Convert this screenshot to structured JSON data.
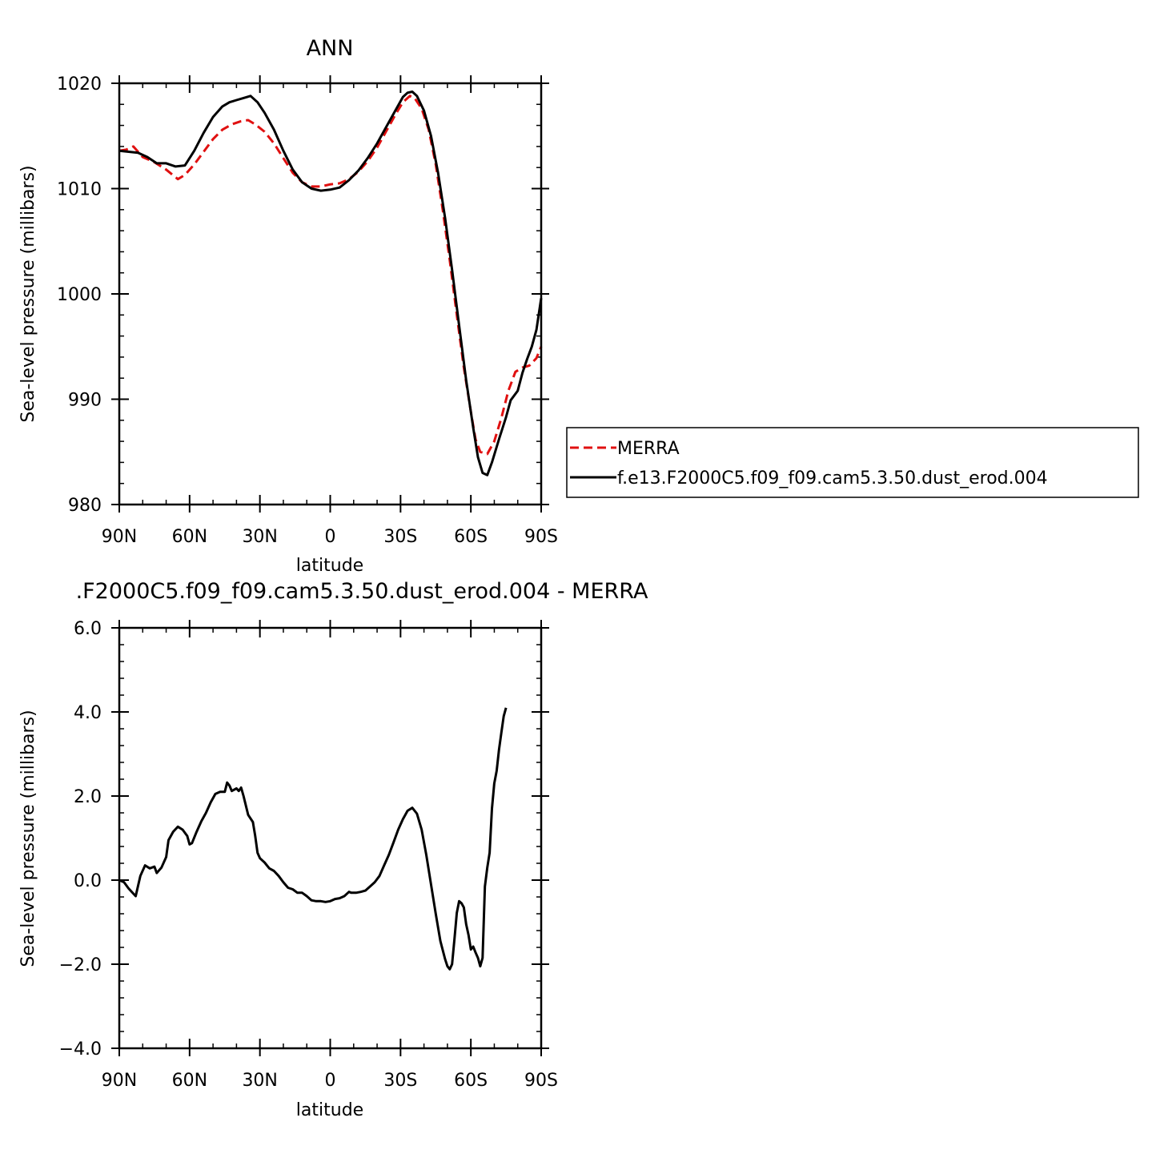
{
  "chart_data": [
    {
      "type": "line",
      "title": "ANN",
      "xlabel": "latitude",
      "ylabel": "Sea-level pressure (millibars)",
      "xlim": [
        90,
        -90
      ],
      "ylim": [
        980,
        1020
      ],
      "x_ticks": [
        {
          "v": 90,
          "label": "90N"
        },
        {
          "v": 60,
          "label": "60N"
        },
        {
          "v": 30,
          "label": "30N"
        },
        {
          "v": 0,
          "label": "0"
        },
        {
          "v": -30,
          "label": "30S"
        },
        {
          "v": -60,
          "label": "60S"
        },
        {
          "v": -90,
          "label": "90S"
        }
      ],
      "y_ticks": [
        {
          "v": 980,
          "label": "980"
        },
        {
          "v": 990,
          "label": "990"
        },
        {
          "v": 1000,
          "label": "1000"
        },
        {
          "v": 1010,
          "label": "1010"
        },
        {
          "v": 1020,
          "label": "1020"
        }
      ],
      "legend_position": "right",
      "series": [
        {
          "name": "MERRA",
          "color": "#e01010",
          "dash": "dashed",
          "points": [
            [
              90,
              1013.6
            ],
            [
              87,
              1013.7
            ],
            [
              84,
              1014.0
            ],
            [
              80,
              1013.0
            ],
            [
              75,
              1012.5
            ],
            [
              70,
              1011.8
            ],
            [
              65,
              1010.9
            ],
            [
              62,
              1011.3
            ],
            [
              58,
              1012.3
            ],
            [
              54,
              1013.5
            ],
            [
              50,
              1014.7
            ],
            [
              46,
              1015.6
            ],
            [
              42,
              1016.1
            ],
            [
              38,
              1016.4
            ],
            [
              35,
              1016.5
            ],
            [
              32,
              1016.1
            ],
            [
              28,
              1015.4
            ],
            [
              24,
              1014.3
            ],
            [
              20,
              1012.9
            ],
            [
              16,
              1011.5
            ],
            [
              12,
              1010.6
            ],
            [
              8,
              1010.2
            ],
            [
              4,
              1010.2
            ],
            [
              0,
              1010.4
            ],
            [
              -4,
              1010.5
            ],
            [
              -8,
              1010.9
            ],
            [
              -12,
              1011.6
            ],
            [
              -16,
              1012.6
            ],
            [
              -20,
              1013.9
            ],
            [
              -24,
              1015.5
            ],
            [
              -28,
              1017.1
            ],
            [
              -31,
              1018.2
            ],
            [
              -34,
              1018.8
            ],
            [
              -36,
              1018.6
            ],
            [
              -39,
              1017.6
            ],
            [
              -42,
              1015.6
            ],
            [
              -45,
              1012.3
            ],
            [
              -48,
              1008.0
            ],
            [
              -51,
              1003.2
            ],
            [
              -54,
              998.0
            ],
            [
              -57,
              993.0
            ],
            [
              -60,
              988.8
            ],
            [
              -62,
              986.2
            ],
            [
              -64,
              985.0
            ],
            [
              -67,
              984.8
            ],
            [
              -70,
              986.0
            ],
            [
              -73,
              988.2
            ],
            [
              -76,
              990.8
            ],
            [
              -79,
              992.6
            ],
            [
              -82,
              993.0
            ],
            [
              -85,
              993.2
            ],
            [
              -88,
              993.9
            ],
            [
              -90,
              995.0
            ]
          ]
        },
        {
          "name": "f.e13.F2000C5.f09_f09.cam5.3.50.dust_erod.004",
          "color": "#000000",
          "dash": "solid",
          "points": [
            [
              90,
              1013.6
            ],
            [
              86,
              1013.5
            ],
            [
              82,
              1013.4
            ],
            [
              78,
              1013.0
            ],
            [
              74,
              1012.4
            ],
            [
              70,
              1012.4
            ],
            [
              66,
              1012.1
            ],
            [
              62,
              1012.2
            ],
            [
              58,
              1013.6
            ],
            [
              54,
              1015.3
            ],
            [
              50,
              1016.8
            ],
            [
              46,
              1017.8
            ],
            [
              43,
              1018.2
            ],
            [
              40,
              1018.4
            ],
            [
              37,
              1018.6
            ],
            [
              34,
              1018.8
            ],
            [
              31,
              1018.2
            ],
            [
              28,
              1017.2
            ],
            [
              24,
              1015.6
            ],
            [
              20,
              1013.6
            ],
            [
              16,
              1011.8
            ],
            [
              12,
              1010.6
            ],
            [
              8,
              1010.0
            ],
            [
              4,
              1009.8
            ],
            [
              0,
              1009.9
            ],
            [
              -4,
              1010.1
            ],
            [
              -8,
              1010.8
            ],
            [
              -12,
              1011.7
            ],
            [
              -16,
              1012.9
            ],
            [
              -20,
              1014.3
            ],
            [
              -24,
              1015.9
            ],
            [
              -28,
              1017.5
            ],
            [
              -31,
              1018.7
            ],
            [
              -33,
              1019.1
            ],
            [
              -35,
              1019.2
            ],
            [
              -37,
              1018.8
            ],
            [
              -40,
              1017.4
            ],
            [
              -43,
              1015.0
            ],
            [
              -46,
              1011.5
            ],
            [
              -49,
              1007.2
            ],
            [
              -52,
              1002.3
            ],
            [
              -55,
              997.0
            ],
            [
              -58,
              991.8
            ],
            [
              -61,
              987.3
            ],
            [
              -63,
              984.5
            ],
            [
              -65,
              983.0
            ],
            [
              -67,
              982.8
            ],
            [
              -69,
              984.0
            ],
            [
              -72,
              986.2
            ],
            [
              -75,
              988.3
            ],
            [
              -77,
              989.9
            ],
            [
              -80,
              990.8
            ],
            [
              -82,
              992.5
            ],
            [
              -84,
              993.8
            ],
            [
              -86,
              995.0
            ],
            [
              -88,
              996.6
            ],
            [
              -90,
              999.6
            ]
          ]
        }
      ]
    },
    {
      "type": "line",
      "title": ".F2000C5.f09_f09.cam5.3.50.dust_erod.004 - MERRA",
      "xlabel": "latitude",
      "ylabel": "Sea-level pressure (millibars)",
      "xlim": [
        90,
        -90
      ],
      "ylim": [
        -4.0,
        6.0
      ],
      "x_ticks": [
        {
          "v": 90,
          "label": "90N"
        },
        {
          "v": 60,
          "label": "60N"
        },
        {
          "v": 30,
          "label": "30N"
        },
        {
          "v": 0,
          "label": "0"
        },
        {
          "v": -30,
          "label": "30S"
        },
        {
          "v": -60,
          "label": "60S"
        },
        {
          "v": -90,
          "label": "90S"
        }
      ],
      "y_ticks": [
        {
          "v": -4.0,
          "label": "−4.0"
        },
        {
          "v": -2.0,
          "label": "−2.0"
        },
        {
          "v": 0.0,
          "label": "0.0"
        },
        {
          "v": 2.0,
          "label": "2.0"
        },
        {
          "v": 4.0,
          "label": "4.0"
        },
        {
          "v": 6.0,
          "label": "6.0"
        }
      ],
      "series": [
        {
          "color": "#000000",
          "dash": "solid",
          "points": [
            [
              90,
              0.0
            ],
            [
              88,
              -0.05
            ],
            [
              86,
              -0.2
            ],
            [
              83,
              -0.38
            ],
            [
              81,
              0.1
            ],
            [
              79,
              0.35
            ],
            [
              77,
              0.28
            ],
            [
              75,
              0.32
            ],
            [
              74,
              0.17
            ],
            [
              72,
              0.3
            ],
            [
              70,
              0.55
            ],
            [
              69,
              0.95
            ],
            [
              67,
              1.15
            ],
            [
              65,
              1.27
            ],
            [
              63,
              1.2
            ],
            [
              61,
              1.05
            ],
            [
              60,
              0.85
            ],
            [
              59,
              0.88
            ],
            [
              57,
              1.15
            ],
            [
              55,
              1.4
            ],
            [
              53,
              1.6
            ],
            [
              51,
              1.85
            ],
            [
              49,
              2.05
            ],
            [
              47,
              2.1
            ],
            [
              45,
              2.1
            ],
            [
              44,
              2.32
            ],
            [
              43,
              2.25
            ],
            [
              42,
              2.12
            ],
            [
              40,
              2.18
            ],
            [
              39,
              2.12
            ],
            [
              38,
              2.2
            ],
            [
              37,
              2.0
            ],
            [
              35,
              1.55
            ],
            [
              33,
              1.38
            ],
            [
              32,
              1.05
            ],
            [
              31,
              0.65
            ],
            [
              30,
              0.52
            ],
            [
              28,
              0.42
            ],
            [
              26,
              0.28
            ],
            [
              24,
              0.22
            ],
            [
              22,
              0.1
            ],
            [
              20,
              -0.05
            ],
            [
              18,
              -0.18
            ],
            [
              16,
              -0.22
            ],
            [
              14,
              -0.3
            ],
            [
              12,
              -0.3
            ],
            [
              10,
              -0.38
            ],
            [
              8,
              -0.48
            ],
            [
              6,
              -0.5
            ],
            [
              4,
              -0.5
            ],
            [
              2,
              -0.52
            ],
            [
              0,
              -0.5
            ],
            [
              -2,
              -0.45
            ],
            [
              -4,
              -0.43
            ],
            [
              -6,
              -0.38
            ],
            [
              -8,
              -0.28
            ],
            [
              -9,
              -0.3
            ],
            [
              -11,
              -0.3
            ],
            [
              -13,
              -0.28
            ],
            [
              -15,
              -0.25
            ],
            [
              -17,
              -0.15
            ],
            [
              -19,
              -0.05
            ],
            [
              -21,
              0.1
            ],
            [
              -23,
              0.35
            ],
            [
              -25,
              0.6
            ],
            [
              -27,
              0.9
            ],
            [
              -29,
              1.2
            ],
            [
              -31,
              1.45
            ],
            [
              -33,
              1.65
            ],
            [
              -35,
              1.72
            ],
            [
              -37,
              1.58
            ],
            [
              -39,
              1.2
            ],
            [
              -41,
              0.6
            ],
            [
              -43,
              -0.1
            ],
            [
              -45,
              -0.8
            ],
            [
              -47,
              -1.45
            ],
            [
              -49,
              -1.88
            ],
            [
              -50,
              -2.05
            ],
            [
              -51,
              -2.12
            ],
            [
              -52,
              -2.0
            ],
            [
              -53,
              -1.4
            ],
            [
              -54,
              -0.78
            ],
            [
              -55,
              -0.5
            ],
            [
              -56,
              -0.55
            ],
            [
              -57,
              -0.65
            ],
            [
              -58,
              -1.05
            ],
            [
              -59,
              -1.3
            ],
            [
              -60,
              -1.65
            ],
            [
              -61,
              -1.58
            ],
            [
              -62,
              -1.72
            ],
            [
              -63,
              -1.85
            ],
            [
              -64,
              -2.05
            ],
            [
              -65,
              -1.85
            ],
            [
              -66,
              -0.15
            ],
            [
              -67,
              0.3
            ],
            [
              -68,
              0.65
            ],
            [
              -69,
              1.7
            ],
            [
              -70,
              2.3
            ],
            [
              -71,
              2.6
            ],
            [
              -72,
              3.1
            ],
            [
              -73,
              3.5
            ],
            [
              -74,
              3.9
            ],
            [
              -75,
              4.1
            ]
          ]
        }
      ]
    }
  ]
}
